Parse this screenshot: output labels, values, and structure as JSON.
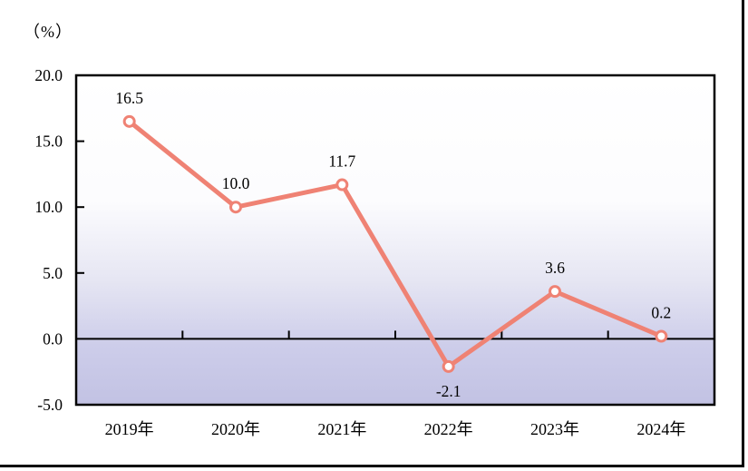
{
  "unit_label": "（%）",
  "colors": {
    "line": "#EF8274",
    "marker_fill": "#FFFFFF",
    "axis": "#000000",
    "text": "#000000",
    "outer_border": "#000000",
    "plot_gradient": [
      "#FFFFFF",
      "#FCFCFE",
      "#E6E6F3",
      "#CDCDEA",
      "#C2C2E3"
    ]
  },
  "chart_data": {
    "type": "line",
    "title": "",
    "unit": "（%）",
    "categories": [
      "2019年",
      "2020年",
      "2021年",
      "2022年",
      "2023年",
      "2024年"
    ],
    "values": [
      16.5,
      10.0,
      11.7,
      -2.1,
      3.6,
      0.2
    ],
    "data_labels": [
      "16.5",
      "10.0",
      "11.7",
      "-2.1",
      "3.6",
      "0.2"
    ],
    "ylim": [
      -5.0,
      20.0
    ],
    "yticks": [
      20.0,
      15.0,
      10.0,
      5.0,
      0.0,
      -5.0
    ],
    "ytick_labels": [
      "20.0",
      "15.0",
      "10.0",
      "5.0",
      "0.0",
      "-5.0"
    ],
    "grid": false,
    "legend": "none",
    "marker": "circle-open",
    "xlabel": "",
    "ylabel": "（%）"
  }
}
